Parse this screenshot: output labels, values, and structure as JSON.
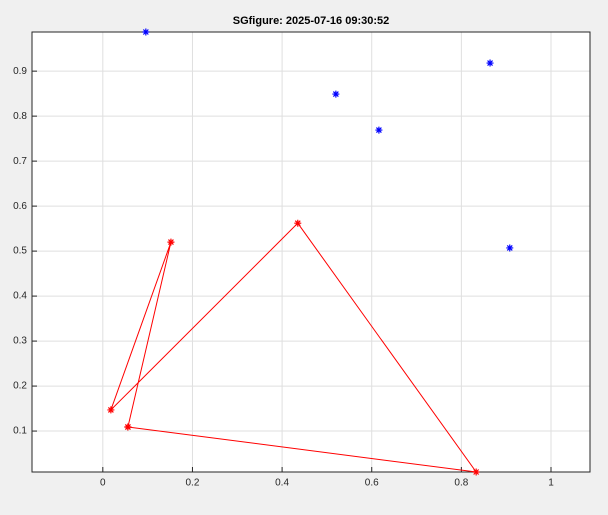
{
  "chart_data": {
    "type": "line",
    "title": "SGfigure: 2025-07-16 09:30:52",
    "xlim": [
      -0.158,
      1.087
    ],
    "ylim": [
      0.009,
      0.987
    ],
    "xticks": [
      0,
      0.2,
      0.4,
      0.6,
      0.8,
      1
    ],
    "yticks": [
      0.1,
      0.2,
      0.3,
      0.4,
      0.5,
      0.6,
      0.7,
      0.8,
      0.9
    ],
    "grid": true,
    "series": [
      {
        "color": "#0000ff",
        "line": false,
        "marker": "*",
        "x": [
          0.096,
          0.52,
          0.616,
          0.864,
          0.908
        ],
        "values": [
          0.987,
          0.849,
          0.769,
          0.918,
          0.507
        ]
      },
      {
        "color": "#ff0000",
        "line": true,
        "marker": "*",
        "x": [
          0.056,
          0.152,
          0.018,
          0.435,
          0.833,
          0.056
        ],
        "values": [
          0.109,
          0.52,
          0.147,
          0.562,
          0.009,
          0.109
        ]
      }
    ]
  }
}
